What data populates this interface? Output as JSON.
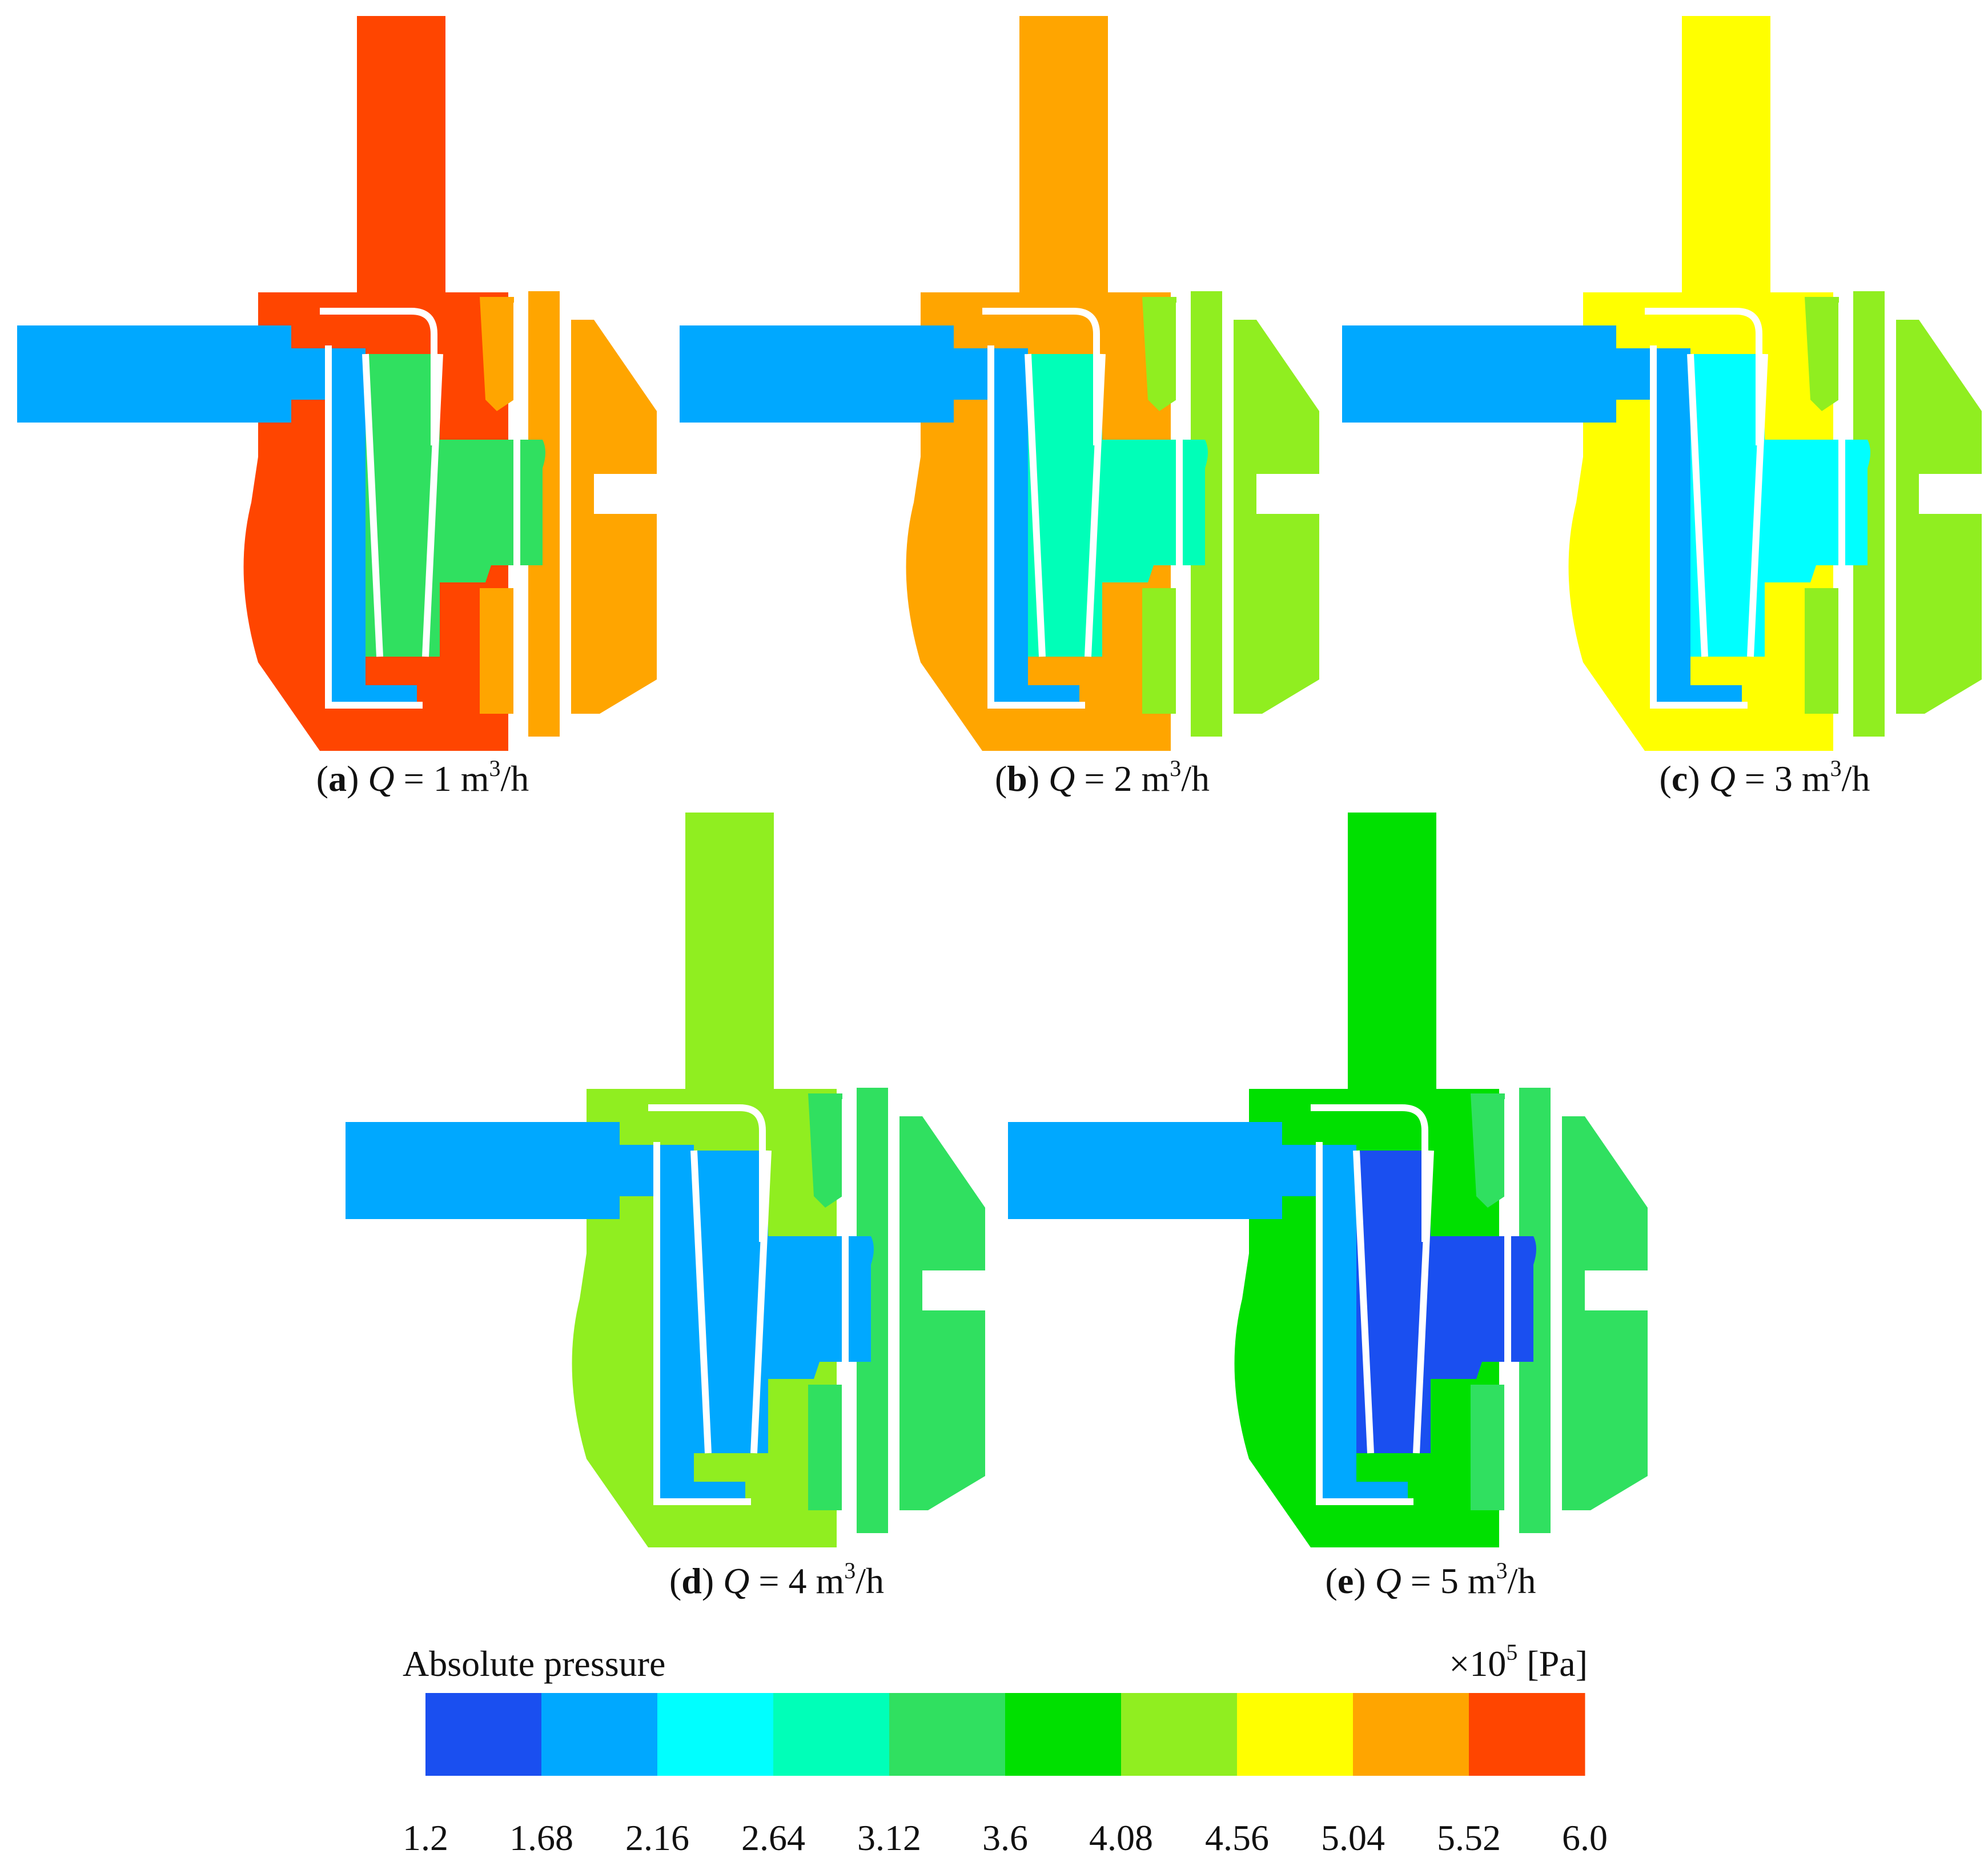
{
  "panels": [
    {
      "id": "a",
      "letter": "a",
      "q_label": "Q",
      "q_value": "1",
      "unit_base": "m",
      "unit_exp": "3",
      "unit_tail": "/h",
      "casing_level": "5.52–6.0",
      "casing_color": "#ff4500",
      "rear_color": "#ffa500"
    },
    {
      "id": "b",
      "letter": "b",
      "q_label": "Q",
      "q_value": "2",
      "unit_base": "m",
      "unit_exp": "3",
      "unit_tail": "/h",
      "casing_level": "5.04–5.52",
      "casing_color": "#ffa500",
      "rear_color": "#90ee20"
    },
    {
      "id": "c",
      "letter": "c",
      "q_label": "Q",
      "q_value": "3",
      "unit_base": "m",
      "unit_exp": "3",
      "unit_tail": "/h",
      "casing_level": "4.56–5.04",
      "casing_color": "#ffff00",
      "rear_color": "#90ee20"
    },
    {
      "id": "d",
      "letter": "d",
      "q_label": "Q",
      "q_value": "4",
      "unit_base": "m",
      "unit_exp": "3",
      "unit_tail": "/h",
      "casing_level": "4.08–4.56",
      "casing_color": "#90ee20",
      "rear_color": "#30e060"
    },
    {
      "id": "e",
      "letter": "e",
      "q_label": "Q",
      "q_value": "5",
      "unit_base": "m",
      "unit_exp": "3",
      "unit_tail": "/h",
      "casing_level": "3.6–4.08",
      "casing_color": "#00e000",
      "rear_color": "#30e060"
    }
  ],
  "colorbar": {
    "title": "Absolute pressure",
    "unit_prefix": "×10",
    "unit_exp": "5",
    "unit_suffix": " [Pa]",
    "ticks": [
      "1.2",
      "1.68",
      "2.16",
      "2.64",
      "3.12",
      "3.6",
      "4.08",
      "4.56",
      "5.04",
      "5.52",
      "6.0"
    ],
    "colors": [
      "#1a4ff0",
      "#00a8ff",
      "#00ffff",
      "#00ffb8",
      "#30e060",
      "#00e000",
      "#90ee20",
      "#ffff00",
      "#ffa500",
      "#ff4500"
    ]
  }
}
